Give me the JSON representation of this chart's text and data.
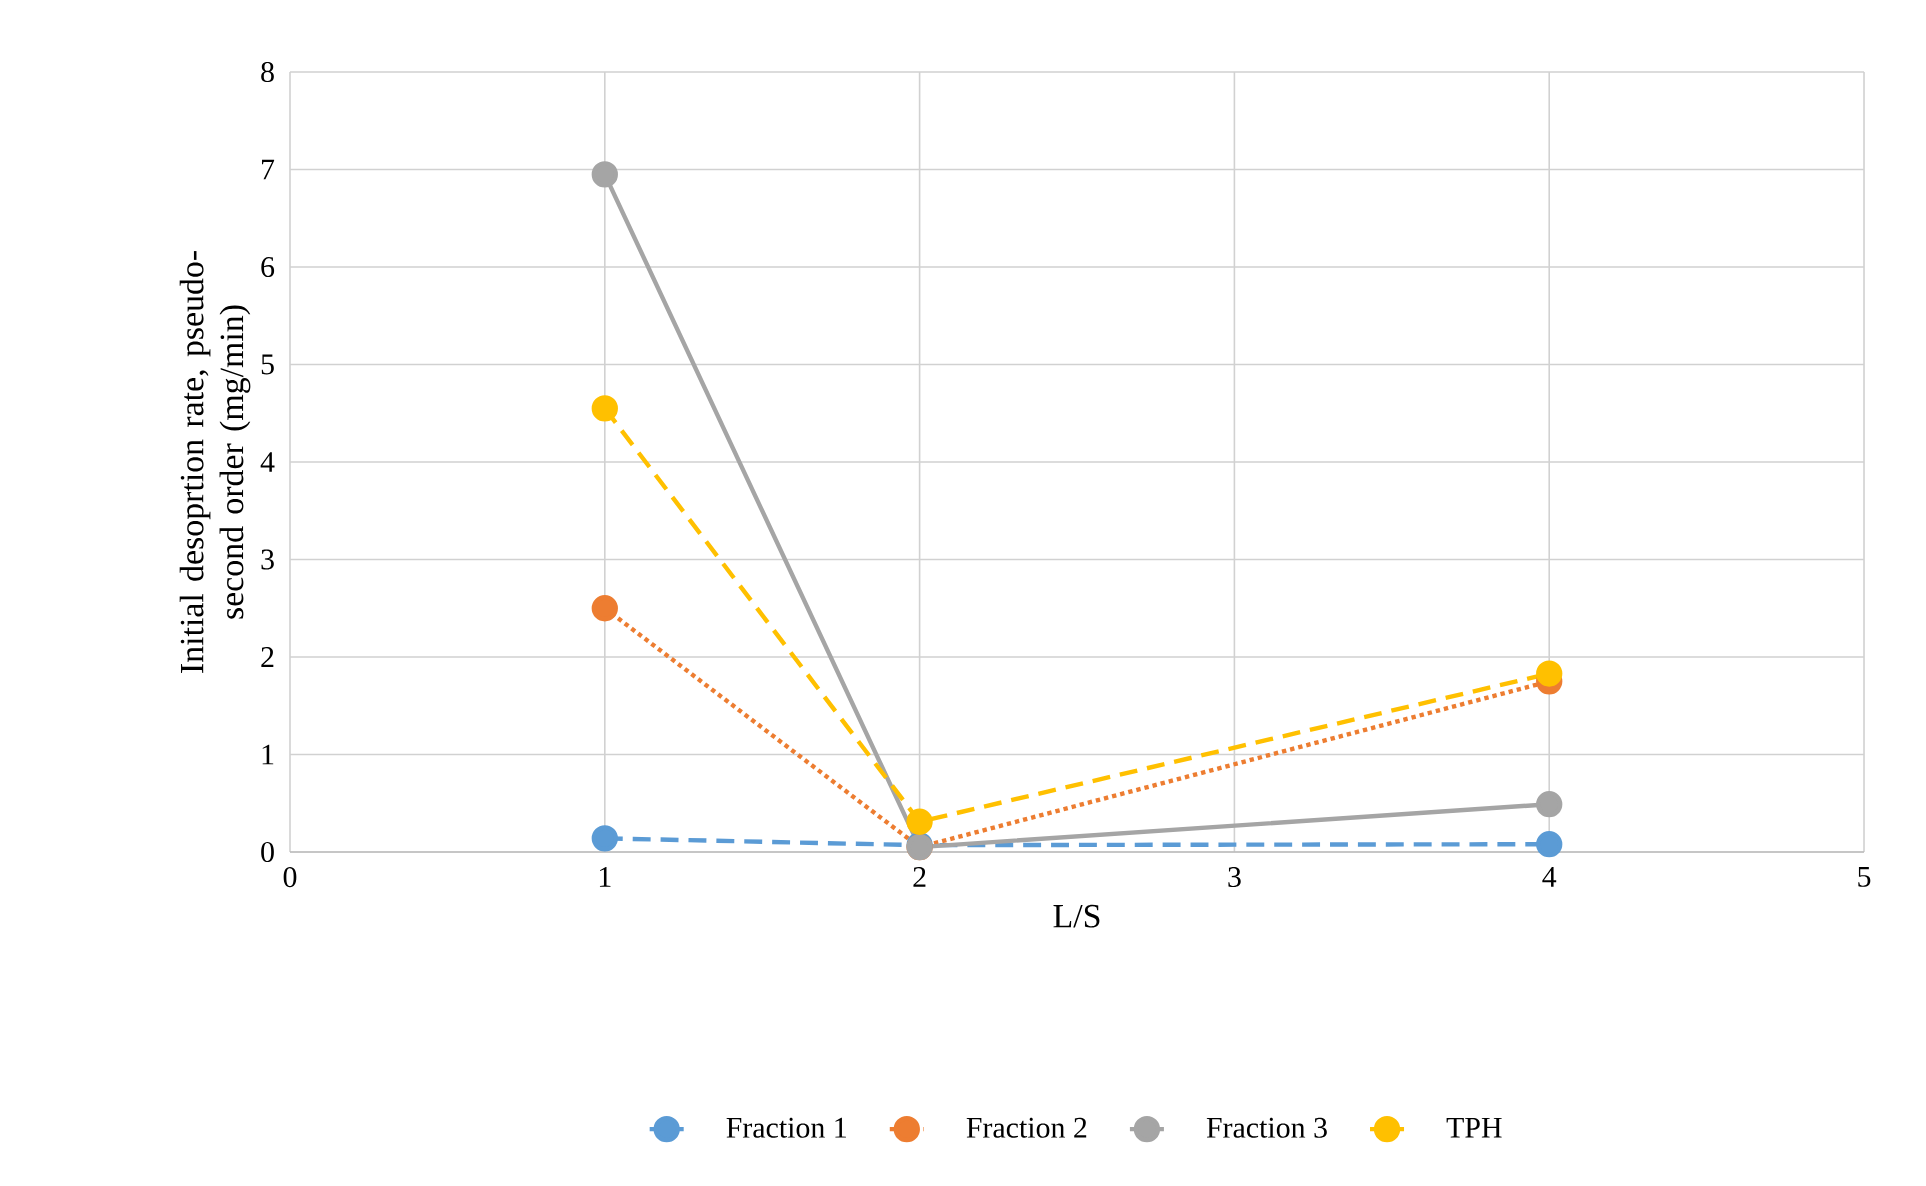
{
  "chart_data": {
    "type": "line",
    "xlabel": "L/S",
    "ylabel": "Initial desoprtion rate, pseudo-second order (mg/min)",
    "x": [
      1,
      2,
      4
    ],
    "series": [
      {
        "name": "Fraction 1",
        "color": "#5b9bd5",
        "line_style": "dashed",
        "values": [
          0.14,
          0.07,
          0.08
        ]
      },
      {
        "name": "Fraction 2",
        "color": "#ed7d31",
        "line_style": "dotted",
        "values": [
          2.5,
          0.05,
          1.75
        ]
      },
      {
        "name": "Fraction 3",
        "color": "#a5a5a5",
        "line_style": "solid",
        "values": [
          6.95,
          0.05,
          0.49
        ]
      },
      {
        "name": "TPH",
        "color": "#ffc000",
        "line_style": "dashed",
        "values": [
          4.55,
          0.31,
          1.83
        ]
      }
    ],
    "xlim": [
      0,
      5
    ],
    "xticks": [
      0,
      1,
      2,
      3,
      4,
      5
    ],
    "ylim": [
      0,
      8
    ],
    "yticks": [
      0,
      1,
      2,
      3,
      4,
      5,
      6,
      7,
      8
    ],
    "grid": true,
    "legend": "bottom",
    "marker": "circle"
  }
}
